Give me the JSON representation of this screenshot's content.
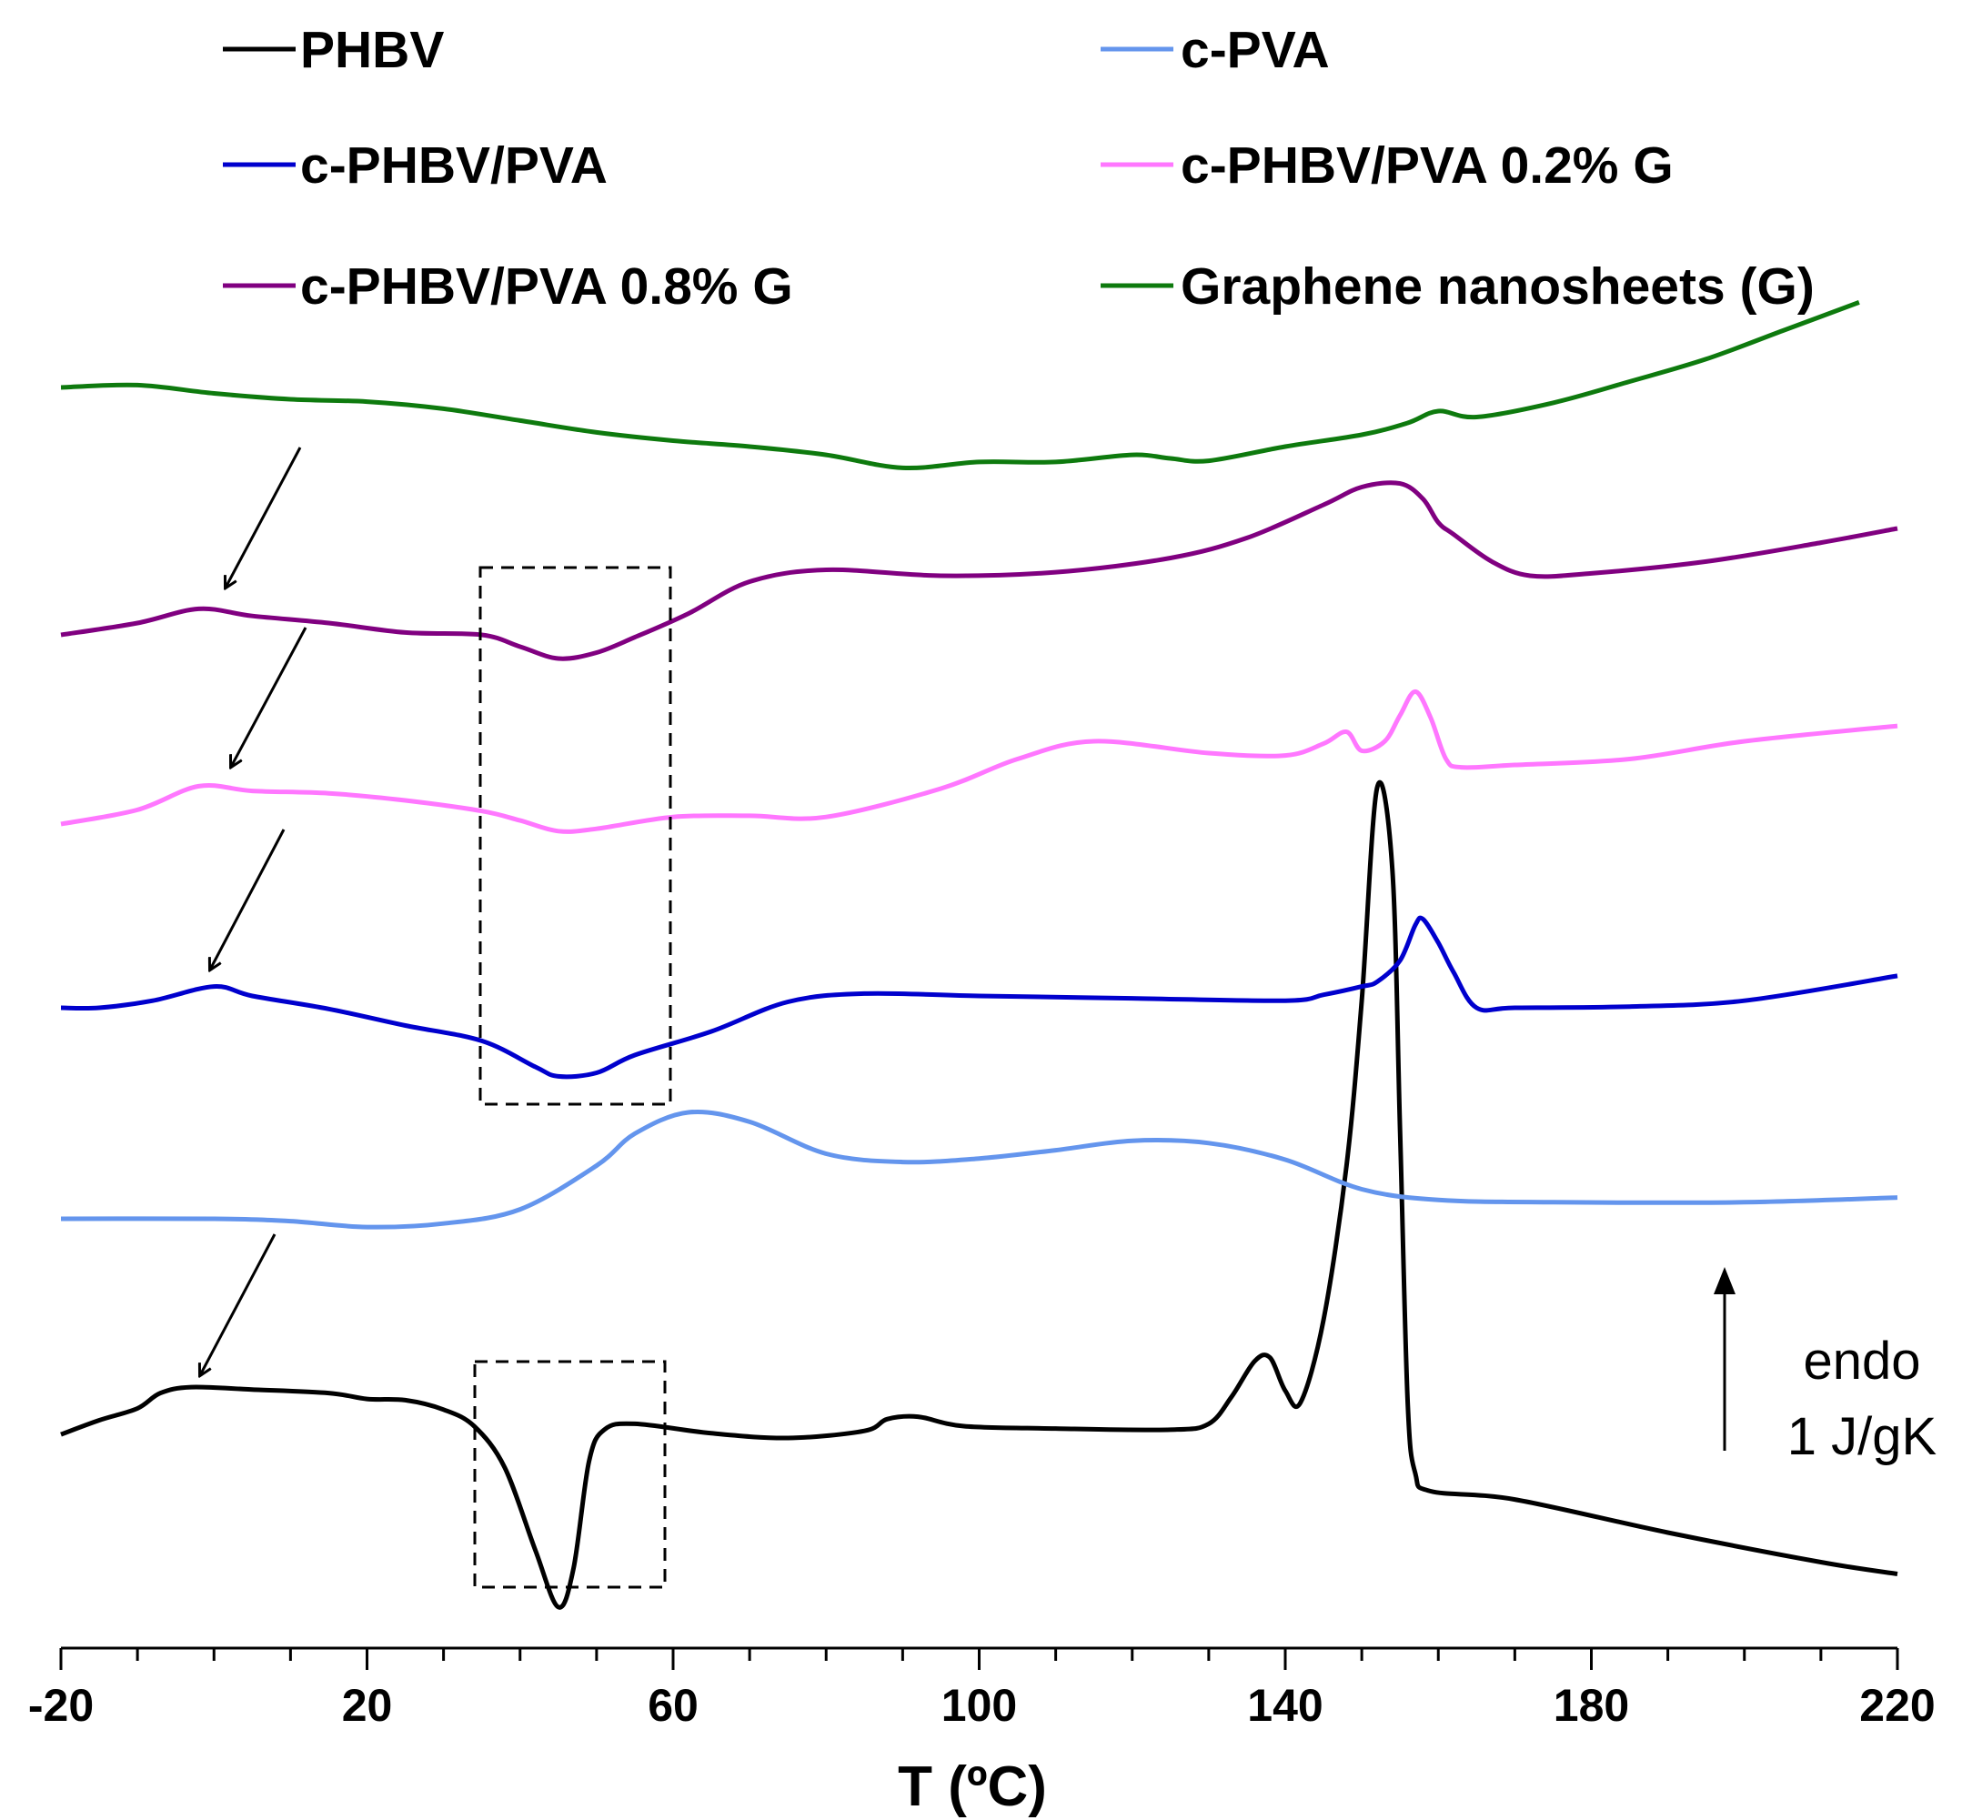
{
  "chart_data": {
    "type": "line",
    "title": "",
    "xlabel": "T (ºC)",
    "ylabel": "",
    "xlim": [
      -20,
      220
    ],
    "x_ticks": [
      "-20",
      "20",
      "60",
      "100",
      "140",
      "180",
      "220"
    ],
    "x_tick_values": [
      -20,
      20,
      60,
      100,
      140,
      180,
      220
    ],
    "x_minor_step": 10,
    "y_axis": "relative heat flow (curves vertically offset, endo up)",
    "scale_bar": {
      "direction_label": "endo",
      "magnitude_label": "1 J/gK",
      "value_j_per_gk": 1
    },
    "legend": {
      "position": "top",
      "columns": 2
    },
    "series": [
      {
        "name": "PHBV",
        "color": "#000000",
        "x_end": 220,
        "points": [
          [
            -20,
            -0.07
          ],
          [
            -15,
            0.05
          ],
          [
            -10,
            0.15
          ],
          [
            -7,
            0.28
          ],
          [
            -3,
            0.33
          ],
          [
            5,
            0.31
          ],
          [
            15,
            0.28
          ],
          [
            20,
            0.23
          ],
          [
            25,
            0.22
          ],
          [
            30,
            0.14
          ],
          [
            34,
            0
          ],
          [
            38,
            -0.35
          ],
          [
            42,
            -1.05
          ],
          [
            45,
            -1.53
          ],
          [
            47,
            -1.2
          ],
          [
            49,
            -0.3
          ],
          [
            51,
            -0.03
          ],
          [
            55,
            0.02
          ],
          [
            65,
            -0.06
          ],
          [
            75,
            -0.1
          ],
          [
            85,
            -0.04
          ],
          [
            88,
            0.06
          ],
          [
            92,
            0.08
          ],
          [
            98,
            0
          ],
          [
            110,
            -0.02
          ],
          [
            125,
            -0.03
          ],
          [
            130,
            0.02
          ],
          [
            133,
            0.25
          ],
          [
            136,
            0.55
          ],
          [
            138,
            0.58
          ],
          [
            140,
            0.3
          ],
          [
            142,
            0.2
          ],
          [
            145,
            0.9
          ],
          [
            148,
            2.2
          ],
          [
            150,
            3.6
          ],
          [
            152,
            5.4
          ],
          [
            154,
            4.7
          ],
          [
            155,
            2.5
          ],
          [
            156,
            0.2
          ],
          [
            157,
            -0.4
          ],
          [
            159,
            -0.55
          ],
          [
            170,
            -0.62
          ],
          [
            190,
            -0.9
          ],
          [
            210,
            -1.15
          ],
          [
            220,
            -1.25
          ]
        ]
      },
      {
        "name": "c-PVA",
        "color": "#6495ED",
        "x_end": 220,
        "points": [
          [
            -20,
            0
          ],
          [
            0,
            0
          ],
          [
            10,
            -0.02
          ],
          [
            20,
            -0.07
          ],
          [
            30,
            -0.04
          ],
          [
            40,
            0.08
          ],
          [
            50,
            0.45
          ],
          [
            55,
            0.72
          ],
          [
            62,
            0.9
          ],
          [
            70,
            0.82
          ],
          [
            80,
            0.55
          ],
          [
            90,
            0.48
          ],
          [
            100,
            0.51
          ],
          [
            110,
            0.58
          ],
          [
            120,
            0.66
          ],
          [
            130,
            0.64
          ],
          [
            140,
            0.5
          ],
          [
            150,
            0.25
          ],
          [
            160,
            0.16
          ],
          [
            175,
            0.14
          ],
          [
            200,
            0.14
          ],
          [
            220,
            0.18
          ]
        ]
      },
      {
        "name": "c-PHBV/PVA",
        "color": "#0000CD",
        "x_end": 220,
        "points": [
          [
            -20,
            0
          ],
          [
            -15,
            0
          ],
          [
            -8,
            0.06
          ],
          [
            0,
            0.18
          ],
          [
            5,
            0.1
          ],
          [
            15,
            -0.01
          ],
          [
            25,
            -0.15
          ],
          [
            35,
            -0.28
          ],
          [
            42,
            -0.5
          ],
          [
            45,
            -0.58
          ],
          [
            50,
            -0.55
          ],
          [
            55,
            -0.4
          ],
          [
            65,
            -0.2
          ],
          [
            75,
            0.05
          ],
          [
            85,
            0.12
          ],
          [
            100,
            0.1
          ],
          [
            120,
            0.08
          ],
          [
            140,
            0.06
          ],
          [
            145,
            0.11
          ],
          [
            150,
            0.18
          ],
          [
            152,
            0.22
          ],
          [
            155,
            0.4
          ],
          [
            157,
            0.7
          ],
          [
            158,
            0.75
          ],
          [
            160,
            0.55
          ],
          [
            162,
            0.3
          ],
          [
            165,
            0
          ],
          [
            170,
            0
          ],
          [
            185,
            0.01
          ],
          [
            200,
            0.06
          ],
          [
            220,
            0.27
          ]
        ]
      },
      {
        "name": "c-PHBV/PVA 0.2% G",
        "color": "#FF77FF",
        "x_end": 220,
        "points": [
          [
            -20,
            0
          ],
          [
            -10,
            0.12
          ],
          [
            -2,
            0.32
          ],
          [
            5,
            0.28
          ],
          [
            15,
            0.26
          ],
          [
            25,
            0.2
          ],
          [
            35,
            0.11
          ],
          [
            40,
            0.03
          ],
          [
            45,
            -0.06
          ],
          [
            50,
            -0.04
          ],
          [
            60,
            0.06
          ],
          [
            70,
            0.07
          ],
          [
            80,
            0.06
          ],
          [
            95,
            0.3
          ],
          [
            105,
            0.55
          ],
          [
            115,
            0.7
          ],
          [
            130,
            0.6
          ],
          [
            140,
            0.58
          ],
          [
            145,
            0.68
          ],
          [
            148,
            0.78
          ],
          [
            150,
            0.62
          ],
          [
            153,
            0.7
          ],
          [
            155,
            0.92
          ],
          [
            157,
            1.12
          ],
          [
            159,
            0.9
          ],
          [
            161,
            0.55
          ],
          [
            163,
            0.48
          ],
          [
            170,
            0.5
          ],
          [
            185,
            0.55
          ],
          [
            200,
            0.7
          ],
          [
            220,
            0.83
          ]
        ]
      },
      {
        "name": "c-PHBV/PVA 0.8% G",
        "color": "#800080",
        "x_end": 220,
        "points": [
          [
            -20,
            0
          ],
          [
            -10,
            0.1
          ],
          [
            -2,
            0.22
          ],
          [
            5,
            0.16
          ],
          [
            15,
            0.1
          ],
          [
            25,
            0.02
          ],
          [
            35,
            0
          ],
          [
            40,
            -0.1
          ],
          [
            45,
            -0.2
          ],
          [
            50,
            -0.15
          ],
          [
            55,
            -0.02
          ],
          [
            62,
            0.18
          ],
          [
            70,
            0.45
          ],
          [
            80,
            0.55
          ],
          [
            95,
            0.5
          ],
          [
            110,
            0.53
          ],
          [
            125,
            0.65
          ],
          [
            135,
            0.82
          ],
          [
            145,
            1.1
          ],
          [
            150,
            1.25
          ],
          [
            155,
            1.28
          ],
          [
            158,
            1.15
          ],
          [
            160,
            0.95
          ],
          [
            162,
            0.85
          ],
          [
            167,
            0.62
          ],
          [
            172,
            0.5
          ],
          [
            180,
            0.52
          ],
          [
            195,
            0.62
          ],
          [
            210,
            0.78
          ],
          [
            220,
            0.9
          ]
        ]
      },
      {
        "name": "Graphene nanosheets (G)",
        "color": "#0E7A0E",
        "x_end": 215,
        "points": [
          [
            -20,
            0
          ],
          [
            -10,
            0.02
          ],
          [
            0,
            -0.05
          ],
          [
            10,
            -0.1
          ],
          [
            20,
            -0.12
          ],
          [
            30,
            -0.18
          ],
          [
            40,
            -0.28
          ],
          [
            50,
            -0.38
          ],
          [
            60,
            -0.45
          ],
          [
            70,
            -0.5
          ],
          [
            80,
            -0.57
          ],
          [
            90,
            -0.68
          ],
          [
            100,
            -0.63
          ],
          [
            110,
            -0.63
          ],
          [
            120,
            -0.57
          ],
          [
            125,
            -0.6
          ],
          [
            130,
            -0.62
          ],
          [
            140,
            -0.5
          ],
          [
            150,
            -0.4
          ],
          [
            156,
            -0.3
          ],
          [
            160,
            -0.2
          ],
          [
            165,
            -0.25
          ],
          [
            175,
            -0.13
          ],
          [
            185,
            0.05
          ],
          [
            195,
            0.24
          ],
          [
            205,
            0.48
          ],
          [
            215,
            0.72
          ]
        ]
      }
    ],
    "annotations": [
      {
        "type": "dashed-box",
        "x_range": [
          34,
          59
        ],
        "around": "c-PHBV/PVA series"
      },
      {
        "type": "dashed-box",
        "x_range": [
          34,
          59
        ],
        "around": "PHBV series"
      },
      {
        "type": "arrow",
        "target": "c-PHBV/PVA 0.8% G",
        "x": -2
      },
      {
        "type": "arrow",
        "target": "c-PHBV/PVA 0.2% G",
        "x": -2
      },
      {
        "type": "arrow",
        "target": "c-PHBV/PVA",
        "x": -3
      },
      {
        "type": "arrow",
        "target": "PHBV",
        "x": -5
      }
    ]
  }
}
